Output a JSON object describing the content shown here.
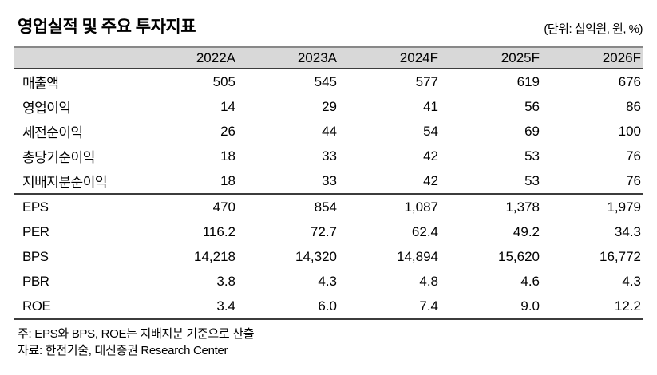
{
  "header": {
    "title": "영업실적 및 주요 투자지표",
    "unit_note": "(단위: 십억원, 원, %)"
  },
  "table": {
    "columns": [
      "2022A",
      "2023A",
      "2024F",
      "2025F",
      "2026F"
    ],
    "block1": [
      {
        "label": "매출액",
        "values": [
          "505",
          "545",
          "577",
          "619",
          "676"
        ]
      },
      {
        "label": "영업이익",
        "values": [
          "14",
          "29",
          "41",
          "56",
          "86"
        ]
      },
      {
        "label": "세전순이익",
        "values": [
          "26",
          "44",
          "54",
          "69",
          "100"
        ]
      },
      {
        "label": "총당기순이익",
        "values": [
          "18",
          "33",
          "42",
          "53",
          "76"
        ]
      },
      {
        "label": "지배지분순이익",
        "values": [
          "18",
          "33",
          "42",
          "53",
          "76"
        ]
      }
    ],
    "block2": [
      {
        "label": "EPS",
        "values": [
          "470",
          "854",
          "1,087",
          "1,378",
          "1,979"
        ]
      },
      {
        "label": "PER",
        "values": [
          "116.2",
          "72.7",
          "62.4",
          "49.2",
          "34.3"
        ]
      },
      {
        "label": "BPS",
        "values": [
          "14,218",
          "14,320",
          "14,894",
          "15,620",
          "16,772"
        ]
      },
      {
        "label": "PBR",
        "values": [
          "3.8",
          "4.3",
          "4.8",
          "4.6",
          "4.3"
        ]
      },
      {
        "label": "ROE",
        "values": [
          "3.4",
          "6.0",
          "7.4",
          "9.0",
          "12.2"
        ]
      }
    ]
  },
  "footnotes": {
    "note": "주: EPS와 BPS, ROE는 지배지분 기준으로 산출",
    "source": "자료: 한전기술, 대신증권 Research Center"
  },
  "colors": {
    "header_band": "#d8d8d8",
    "rule_dark": "#3c3c3c",
    "rule_gray": "#888888",
    "text": "#000000"
  }
}
